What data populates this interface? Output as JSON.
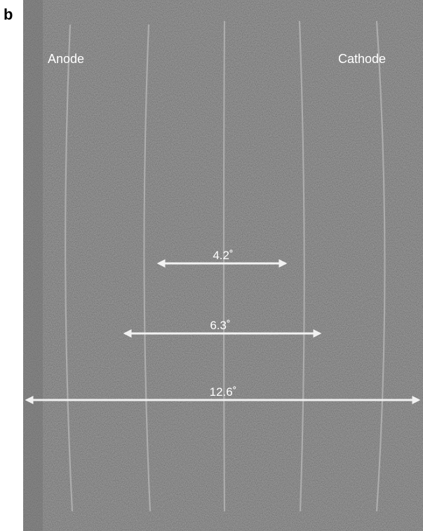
{
  "panel_label": "b",
  "labels": {
    "anode": "Anode",
    "cathode": "Cathode"
  },
  "arrows": [
    {
      "label": "4.2˚"
    },
    {
      "label": "6.3˚"
    },
    {
      "label": "12.6˚"
    }
  ]
}
